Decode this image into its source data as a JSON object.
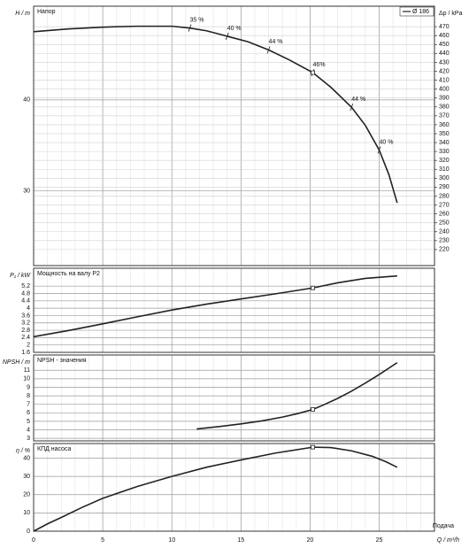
{
  "chart_data": [
    {
      "type": "line",
      "title": "Напор",
      "y_label": "H / m",
      "y2_label": "Δp / kPa",
      "xlim": [
        0,
        29
      ],
      "ylim": [
        21.8,
        50.3
      ],
      "yticks": [
        30,
        40
      ],
      "y2lim": [
        202,
        493
      ],
      "y2ticks": [
        220,
        230,
        240,
        250,
        260,
        270,
        280,
        290,
        300,
        310,
        320,
        330,
        340,
        350,
        360,
        370,
        380,
        390,
        400,
        410,
        420,
        430,
        440,
        450,
        460,
        470
      ],
      "grid": true,
      "legend": "top-right",
      "series": [
        {
          "name": "Ø 186",
          "color": "#222222",
          "x": [
            0,
            2.5,
            5,
            7.5,
            10,
            11.3,
            12.5,
            14,
            15.5,
            17,
            18.5,
            20.2,
            21.5,
            23,
            24,
            25,
            25.7,
            26.3
          ],
          "values": [
            47.5,
            47.8,
            48.0,
            48.1,
            48.1,
            47.9,
            47.6,
            47.0,
            46.4,
            45.5,
            44.4,
            43.0,
            41.4,
            39.2,
            37.2,
            34.5,
            31.8,
            28.7
          ]
        }
      ],
      "annotations": [
        {
          "x": 11.3,
          "y": 47.9,
          "label": "35 %"
        },
        {
          "x": 14,
          "y": 47.0,
          "label": "40 %"
        },
        {
          "x": 17,
          "y": 45.5,
          "label": "44 %"
        },
        {
          "x": 20.2,
          "y": 43.0,
          "label": "46%"
        },
        {
          "x": 23,
          "y": 39.2,
          "label": "44 %"
        },
        {
          "x": 25,
          "y": 34.5,
          "label": "40 %"
        }
      ],
      "marker": {
        "x": 20.2,
        "y": 43.0
      }
    },
    {
      "type": "line",
      "title": "Мощность на валу P2",
      "y_label": "P₁ / kW",
      "xlim": [
        0,
        29
      ],
      "ylim": [
        1.6,
        6.17
      ],
      "yticks": [
        1.6,
        2,
        2.4,
        2.8,
        3.2,
        3.6,
        4,
        4.4,
        4.8,
        5.2
      ],
      "grid": true,
      "series": [
        {
          "color": "#222222",
          "x": [
            0,
            2.5,
            5,
            7.5,
            10,
            12.5,
            15,
            17.5,
            20.2,
            22,
            24,
            26.3
          ],
          "values": [
            2.45,
            2.78,
            3.15,
            3.53,
            3.9,
            4.22,
            4.5,
            4.78,
            5.1,
            5.38,
            5.62,
            5.75
          ]
        }
      ],
      "marker": {
        "x": 20.2,
        "y": 5.1
      }
    },
    {
      "type": "line",
      "title": "NPSH - значения",
      "y_label": "NPSH / m",
      "xlim": [
        0,
        29
      ],
      "ylim": [
        2.7,
        12.8
      ],
      "yticks": [
        3,
        4,
        5,
        6,
        7,
        8,
        9,
        10,
        11
      ],
      "grid": true,
      "series": [
        {
          "color": "#222222",
          "x": [
            11.8,
            13.5,
            15,
            16.5,
            18,
            19.2,
            20.2,
            21,
            22,
            23,
            24,
            25,
            26.3
          ],
          "values": [
            4.1,
            4.4,
            4.7,
            5.05,
            5.5,
            5.95,
            6.4,
            6.95,
            7.7,
            8.55,
            9.5,
            10.5,
            11.9
          ]
        }
      ],
      "marker": {
        "x": 20.2,
        "y": 6.4
      }
    },
    {
      "type": "line",
      "title": "КПД насоса",
      "y_label": "η / %",
      "x_label": "Q / m³/h",
      "x_caption": "Подача",
      "xlim": [
        0,
        29
      ],
      "ylim": [
        0,
        48
      ],
      "yticks": [
        0,
        10,
        20,
        30,
        40
      ],
      "xticks": [
        0,
        5,
        10,
        15,
        20,
        25
      ],
      "grid": true,
      "series": [
        {
          "color": "#222222",
          "x": [
            0,
            1,
            2,
            3.5,
            5,
            7.5,
            10,
            12.5,
            15,
            17.5,
            20.2,
            21.5,
            23,
            24.5,
            25.5,
            26.3
          ],
          "values": [
            0,
            4,
            7.5,
            13,
            18,
            24.5,
            30,
            35,
            39,
            42.8,
            46,
            45.8,
            44,
            41,
            38,
            35
          ]
        }
      ],
      "marker": {
        "x": 20.2,
        "y": 46
      }
    }
  ]
}
